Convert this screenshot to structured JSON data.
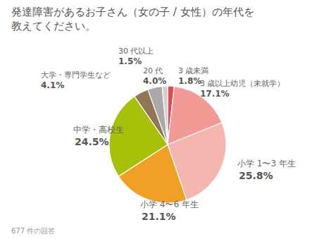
{
  "chart_data": {
    "type": "pie",
    "title": "発達障害があるお子さん（女の子 / 女性）の年代を\n教えてください。",
    "categories": [
      "3 歳未満",
      "3 歳以上幼児（未就学）",
      "小学 1〜3 年生",
      "小学 4〜6 年生",
      "中学・高校生",
      "大学・専門学生など",
      "20 代",
      "30 代以上"
    ],
    "values": [
      1.8,
      17.1,
      25.8,
      21.1,
      24.5,
      4.1,
      4.0,
      1.5
    ],
    "value_labels": [
      "1.8%",
      "17.1%",
      "25.8%",
      "21.1%",
      "24.5%",
      "4.1%",
      "4.0%",
      "1.5%"
    ],
    "colors": [
      "#e5484f",
      "#f29a96",
      "#f5b6af",
      "#f0a025",
      "#a9c00a",
      "#8f7656",
      "#a9a9a9",
      "#cfcfcf"
    ],
    "data_labels": true,
    "annotations": [
      "677 件の回答"
    ]
  }
}
